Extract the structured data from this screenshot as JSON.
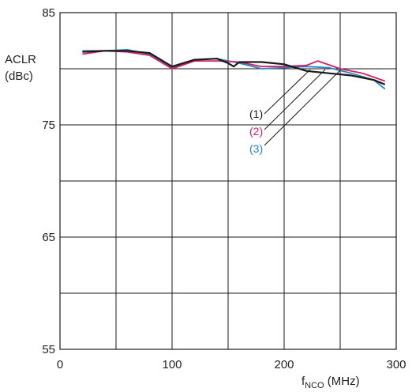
{
  "chart_data": {
    "type": "line",
    "xlabel_main": "f",
    "xlabel_sub": "NCO",
    "xlabel_unit": " (MHz)",
    "ylabel_line1": "ACLR",
    "ylabel_line2": "(dBc)",
    "xlim": [
      0,
      300
    ],
    "ylim": [
      55,
      85
    ],
    "x_ticks": [
      0,
      100,
      200,
      300
    ],
    "y_ticks": [
      55,
      65,
      75,
      85
    ],
    "x_tick_labels": [
      "0",
      "100",
      "200",
      "300"
    ],
    "y_tick_labels": [
      "55",
      "65",
      "75",
      "85"
    ],
    "grid": true,
    "series": [
      {
        "name": "(1)",
        "color": "#1a1a1a",
        "x": [
          20,
          40,
          60,
          80,
          100,
          120,
          140,
          150,
          155,
          160,
          180,
          200,
          220,
          240,
          260,
          280,
          290
        ],
        "y": [
          81.5,
          81.6,
          81.6,
          81.4,
          80.2,
          80.8,
          80.9,
          80.5,
          80.2,
          80.6,
          80.6,
          80.4,
          79.8,
          79.6,
          79.4,
          79.0,
          78.6
        ]
      },
      {
        "name": "(2)",
        "color": "#d81b60",
        "x": [
          20,
          40,
          60,
          80,
          100,
          120,
          140,
          160,
          180,
          200,
          220,
          230,
          250,
          270,
          290
        ],
        "y": [
          81.3,
          81.6,
          81.5,
          81.2,
          80.0,
          80.7,
          80.7,
          80.6,
          80.2,
          80.2,
          80.3,
          80.7,
          80.0,
          79.6,
          78.9
        ]
      },
      {
        "name": "(3)",
        "color": "#1e88c8",
        "x": [
          20,
          40,
          60,
          80,
          100,
          120,
          140,
          160,
          180,
          200,
          220,
          240,
          260,
          280,
          290
        ],
        "y": [
          81.6,
          81.6,
          81.7,
          81.3,
          80.1,
          80.8,
          80.9,
          80.5,
          80.0,
          80.1,
          80.2,
          80.1,
          79.6,
          79.0,
          78.2
        ]
      }
    ],
    "legend": [
      {
        "label": "(1)",
        "color": "#1a1a1a"
      },
      {
        "label": "(2)",
        "color": "#d81b60"
      },
      {
        "label": "(3)",
        "color": "#1e88c8"
      }
    ]
  }
}
